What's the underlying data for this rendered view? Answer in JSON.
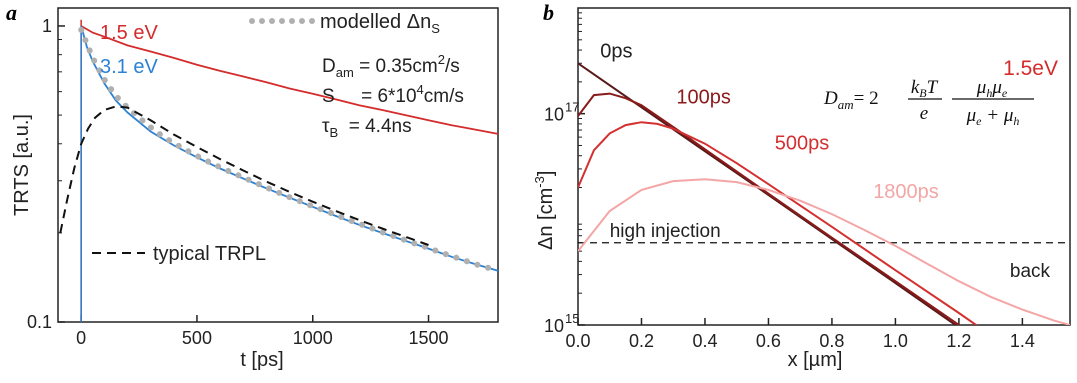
{
  "panels": [
    {
      "letter": "a",
      "chart_data": {
        "type": "line",
        "xlabel": "t [ps]",
        "ylabel": "TRTS [a.u.]",
        "xlim": [
          -100,
          1800
        ],
        "ylim": [
          0.1,
          1.15
        ],
        "yscale": "log",
        "x_ticks": [
          0,
          500,
          1000,
          1500
        ],
        "y_ticks": [
          0.1,
          1
        ],
        "y_tick_labels": [
          "0.1",
          "1"
        ],
        "series": [
          {
            "name": "1.5 eV",
            "color": "#d42b2b",
            "style": "solid",
            "x": [
              0,
              50,
              100,
              200,
              300,
              400,
              500,
              600,
              700,
              800,
              900,
              1000,
              1100,
              1200,
              1300,
              1400,
              1500,
              1600,
              1700,
              1800
            ],
            "y": [
              1.0,
              0.95,
              0.92,
              0.86,
              0.82,
              0.78,
              0.74,
              0.705,
              0.675,
              0.645,
              0.615,
              0.59,
              0.565,
              0.54,
              0.52,
              0.5,
              0.48,
              0.462,
              0.447,
              0.432
            ]
          },
          {
            "name": "3.1 eV",
            "color": "#2b82d4",
            "style": "solid",
            "x": [
              0,
              25,
              50,
              100,
              150,
              200,
              300,
              400,
              500,
              600,
              700,
              800,
              900,
              1000,
              1100,
              1200,
              1300,
              1400,
              1500,
              1600,
              1700,
              1800
            ],
            "y": [
              1.0,
              0.85,
              0.76,
              0.64,
              0.56,
              0.51,
              0.44,
              0.395,
              0.36,
              0.33,
              0.305,
              0.283,
              0.263,
              0.245,
              0.228,
              0.213,
              0.2,
              0.188,
              0.177,
              0.166,
              0.157,
              0.149
            ]
          },
          {
            "name": "modelled Δn",
            "subscript": "S",
            "color": "#b0b0b0",
            "style": "dotted",
            "x": [
              0,
              50,
              100,
              150,
              200,
              250,
              300,
              350,
              400,
              450,
              500,
              550,
              600,
              650,
              700,
              750,
              800,
              850,
              900,
              950,
              1000,
              1050,
              1100,
              1150,
              1200,
              1250,
              1300,
              1350,
              1400,
              1450,
              1500,
              1550,
              1600,
              1650,
              1700,
              1750,
              1800
            ],
            "y": [
              0.97,
              0.78,
              0.66,
              0.58,
              0.53,
              0.49,
              0.455,
              0.425,
              0.402,
              0.382,
              0.364,
              0.348,
              0.333,
              0.32,
              0.308,
              0.296,
              0.285,
              0.274,
              0.264,
              0.255,
              0.246,
              0.238,
              0.23,
              0.222,
              0.215,
              0.208,
              0.201,
              0.195,
              0.189,
              0.183,
              0.178,
              0.172,
              0.167,
              0.162,
              0.157,
              0.153,
              0.149
            ]
          },
          {
            "name": "typical TRPL",
            "color": "#111111",
            "style": "dashed",
            "x": [
              -90,
              -60,
              -30,
              0,
              30,
              60,
              100,
              150,
              200,
              300,
              400,
              500,
              600,
              700,
              800,
              900,
              1000,
              1100,
              1200,
              1300,
              1400,
              1500
            ],
            "y": [
              0.2,
              0.26,
              0.33,
              0.4,
              0.45,
              0.49,
              0.52,
              0.535,
              0.53,
              0.48,
              0.43,
              0.39,
              0.355,
              0.325,
              0.298,
              0.275,
              0.255,
              0.237,
              0.221,
              0.207,
              0.194,
              0.182
            ]
          }
        ],
        "vertical_marks": [
          {
            "series": "1.5 eV",
            "x": 0,
            "y_from": 0.1,
            "y_to": 1.05
          },
          {
            "series": "3.1 eV",
            "x": 0,
            "y_from": 0.1,
            "y_to": 1.0
          }
        ],
        "legend_placement": "top-left",
        "annotations": {
          "d_am": [
            "D",
            "am",
            " = 0.35cm",
            "2",
            "/s"
          ],
          "s": "S     = 6*10",
          "s_sup": "4",
          "s_tail": "cm/s",
          "tau": [
            "τ",
            "B",
            "  = 4.4ns"
          ]
        }
      }
    },
    {
      "letter": "b",
      "chart_data": {
        "type": "line",
        "xlabel": "x [µm]",
        "ylabel": "Δn [cm",
        "ylabel_sup": "-3",
        "ylabel_tail": "]",
        "xlim": [
          0.0,
          1.55
        ],
        "yscale": "log",
        "ylim": [
          1000000000000000.0,
          1e+18
        ],
        "x_ticks": [
          0.0,
          0.2,
          0.4,
          0.6,
          0.8,
          1.0,
          1.2,
          1.4
        ],
        "x_tick_labels": [
          "0.0",
          "0.2",
          "0.4",
          "0.6",
          "0.8",
          "1.0",
          "1.2",
          "1.4"
        ],
        "y_ticks": [
          1000000000000000.0,
          1e+17
        ],
        "y_tick_labels": [
          {
            "base": "10",
            "exp": "15"
          },
          {
            "base": "10",
            "exp": "17"
          }
        ],
        "title": "1.5eV",
        "series": [
          {
            "name": "0ps",
            "color": "#5a1a1a",
            "x": [
              0.0,
              0.2,
              0.4,
              0.6,
              0.8,
              1.0,
              1.2,
              1.3
            ],
            "y": [
              3e+17,
              1.15e+17,
              4.4e+16,
              1.7e+16,
              6500000000000000.0,
              2500000000000000.0,
              950000000000000.0,
              600000000000000.0
            ]
          },
          {
            "name": "100ps",
            "color": "#8b1a1a",
            "x": [
              0.0,
              0.05,
              0.1,
              0.15,
              0.2,
              0.3,
              0.4,
              0.6,
              0.8,
              1.0,
              1.2,
              1.31
            ],
            "y": [
              9.5e+16,
              1.5e+17,
              1.55e+17,
              1.4e+17,
              1.2e+17,
              7.5e+16,
              4.6e+16,
              1.75e+16,
              6700000000000000.0,
              2600000000000000.0,
              1000000000000000.0,
              600000000000000.0
            ]
          },
          {
            "name": "500ps",
            "color": "#d43030",
            "x": [
              0.0,
              0.05,
              0.1,
              0.15,
              0.2,
              0.25,
              0.3,
              0.4,
              0.5,
              0.6,
              0.8,
              1.0,
              1.2,
              1.36
            ],
            "y": [
              2e+16,
              4.5e+16,
              6.5e+16,
              7.8e+16,
              8.3e+16,
              8e+16,
              7.2e+16,
              5.2e+16,
              3.4e+16,
              2.15e+16,
              8500000000000000.0,
              3300000000000000.0,
              1300000000000000.0,
              600000000000000.0
            ]
          },
          {
            "name": "1800ps",
            "color": "#f4a6a6",
            "x": [
              0.0,
              0.1,
              0.2,
              0.3,
              0.4,
              0.5,
              0.6,
              0.7,
              0.8,
              0.9,
              1.0,
              1.1,
              1.2,
              1.3,
              1.4,
              1.5,
              1.55
            ],
            "y": [
              5000000000000000.0,
              1.2e+16,
              1.9e+16,
              2.3e+16,
              2.4e+16,
              2.25e+16,
              1.9e+16,
              1.5e+16,
              1.12e+16,
              8000000000000000.0,
              5600000000000000.0,
              3800000000000000.0,
              2600000000000000.0,
              1850000000000000.0,
              1400000000000000.0,
              1100000000000000.0,
              1000000000000000.0
            ]
          }
        ],
        "reference_line": {
          "label": "high injection",
          "y": 6000000000000000.0,
          "style": "dashed"
        },
        "annotations": {
          "back_label": "back"
        },
        "formula": {
          "lhs": "D",
          "lhs_sub": "am",
          "eq": "= 2",
          "frac1_num": "k",
          "frac1_num_sub": "B",
          "frac1_num_tail": "T",
          "frac1_den": "e",
          "frac2_num": "μ",
          "frac2_num_sub1": "h",
          "frac2_num_mid": "μ",
          "frac2_num_sub2": "e",
          "frac2_den": "μ",
          "frac2_den_sub1": "e",
          "frac2_den_mid": " + μ",
          "frac2_den_sub2": "h"
        }
      }
    }
  ]
}
